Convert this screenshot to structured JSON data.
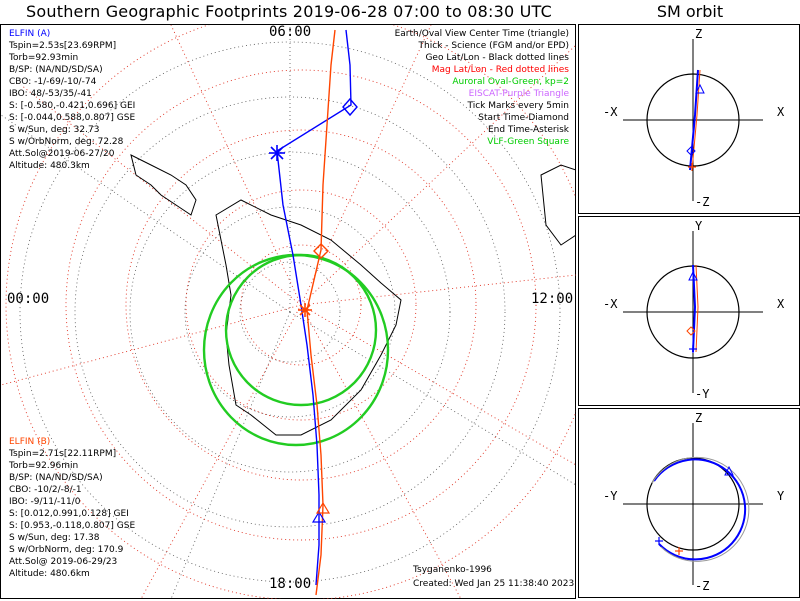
{
  "title": "Southern Geographic Footprints 2019-06-28 07:00 to 08:30 UTC",
  "sm_title": "SM orbit",
  "map": {
    "time_top": "06:00",
    "time_left": "00:00",
    "time_right": "12:00",
    "time_bottom": "18:00"
  },
  "elfin_a": {
    "name": "ELFIN (A)",
    "lines": [
      "Tspin=2.53s[23.69RPM]",
      "Torb=92.93min",
      "B/SP: (NA/ND/SD/SA)",
      "CBO: -1/-69/-10/-74",
      "IBO: 48/-53/35/-41",
      "S: [-0.580,-0.421,0.696] GEI",
      "S: [-0.044,0.588,0.807] GSE",
      "S w/Sun, deg: 32.73",
      "S w/OrbNorm, deg: 72.28",
      "Att.Sol@2019-06-27/20",
      "Altitude: 480.3km"
    ],
    "color": "#0000ff"
  },
  "elfin_b": {
    "name": "ELFIN (B)",
    "lines": [
      "Tspin=2.71s[22.11RPM]",
      "Torb=92.96min",
      "B/SP: (NA/ND/SD/SA)",
      "CBO: -10/2/-8/-1",
      "IBO: -9/11/-11/0",
      "S: [0.012,0.991,0.128] GEI",
      "S: [0.953,-0.118,0.807] GSE",
      "S w/Sun, deg: 17.38",
      "S w/OrbNorm, deg: 170.9",
      "Att.Sol@ 2019-06-29/23",
      "Altitude: 480.6km"
    ],
    "color": "#ff4500"
  },
  "legend": {
    "items": [
      {
        "text": "Earth/Oval View Center Time (triangle)",
        "color": "#000000"
      },
      {
        "text": "Thick - Science (FGM and/or EPD)",
        "color": "#000000"
      },
      {
        "text": "Geo Lat/Lon - Black dotted lines",
        "color": "#000000"
      },
      {
        "text": "Mag Lat/Lon - Red dotted lines",
        "color": "#ff0000"
      },
      {
        "text": "Auroral Oval-Green, kp=2",
        "color": "#00cc00"
      },
      {
        "text": "EISCAT-Purple Triangle",
        "color": "#cc66ff"
      },
      {
        "text": "Tick Marks every 5min",
        "color": "#000000"
      },
      {
        "text": "Start Time-Diamond",
        "color": "#000000"
      },
      {
        "text": "End Time-Asterisk",
        "color": "#000000"
      },
      {
        "text": "VLF-Green Square",
        "color": "#00cc00"
      }
    ]
  },
  "footer": {
    "model": "Tsyganenko-1996",
    "created": "Created: Wed Jan 25 11:38:40 2023"
  },
  "sm_orbit": {
    "panel1": {
      "top": "Z",
      "bottom": "-Z",
      "left": "-X",
      "right": "X"
    },
    "panel2": {
      "top": "Y",
      "bottom": "-Y",
      "left": "-X",
      "right": "X"
    },
    "panel3": {
      "top": "Z",
      "bottom": "-Z",
      "left": "-Y",
      "right": "Y"
    }
  }
}
